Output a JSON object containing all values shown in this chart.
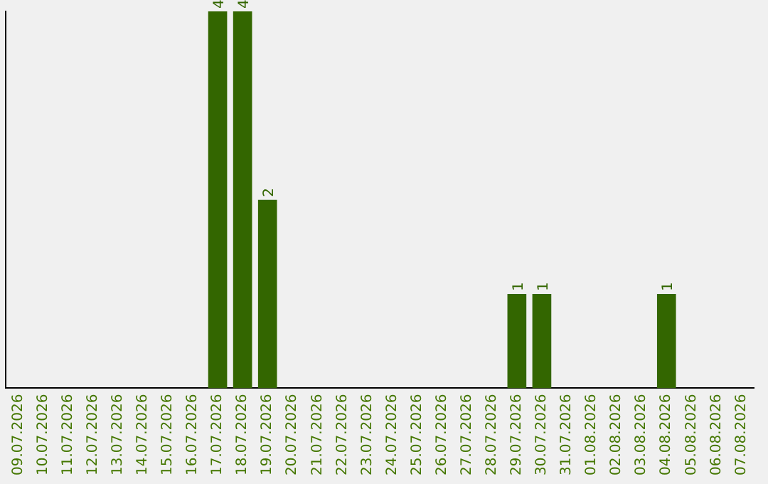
{
  "chart_data": {
    "type": "bar",
    "categories": [
      "09.07.2026",
      "10.07.2026",
      "11.07.2026",
      "12.07.2026",
      "13.07.2026",
      "14.07.2026",
      "15.07.2026",
      "16.07.2026",
      "17.07.2026",
      "18.07.2026",
      "19.07.2026",
      "20.07.2026",
      "21.07.2026",
      "22.07.2026",
      "23.07.2026",
      "24.07.2026",
      "25.07.2026",
      "26.07.2026",
      "27.07.2026",
      "28.07.2026",
      "29.07.2026",
      "30.07.2026",
      "31.07.2026",
      "01.08.2026",
      "02.08.2026",
      "03.08.2026",
      "04.08.2026",
      "05.08.2026",
      "06.08.2026",
      "07.08.2026"
    ],
    "values": [
      0,
      0,
      0,
      0,
      0,
      0,
      0,
      0,
      4,
      4,
      2,
      0,
      0,
      0,
      0,
      0,
      0,
      0,
      0,
      0,
      1,
      1,
      0,
      0,
      0,
      0,
      1,
      0,
      0,
      0
    ],
    "value_labels": [
      null,
      null,
      null,
      null,
      null,
      null,
      null,
      null,
      "4",
      "4",
      "2",
      null,
      null,
      null,
      null,
      null,
      null,
      null,
      null,
      null,
      "1",
      "1",
      null,
      null,
      null,
      null,
      "1",
      null,
      null,
      null
    ],
    "color": "#336600",
    "grid": false,
    "legend": false,
    "tick_labels": "x"
  }
}
